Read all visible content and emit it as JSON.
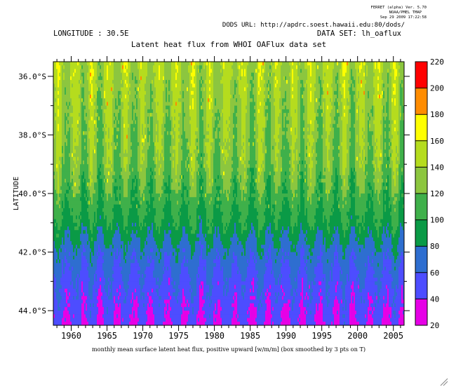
{
  "header": {
    "ferret_line1": "FERRET (alpha) Ver. 5.70",
    "ferret_line2": "NOAA/PMEL TMAP",
    "ferret_line3": "Sep 29 2009 17:22:58",
    "dods_url": "DODS URL: http://apdrc.soest.hawaii.edu:80/dods/",
    "longitude": "LONGITUDE : 30.5E",
    "dataset": "DATA SET: lh_oaflux"
  },
  "chart_data": {
    "type": "heatmap",
    "title": "Latent heat flux from WHOI OAFlux data set",
    "xlabel": "monthly mean surface latent heat flux, positive upward [w/m/m] (box smoothed by 3 pts on T)",
    "ylabel": "LATITUDE",
    "xlim": [
      1957.5,
      2006.5
    ],
    "ylim": [
      -44.5,
      -35.5
    ],
    "x_ticks": [
      1960,
      1965,
      1970,
      1975,
      1980,
      1985,
      1990,
      1995,
      2000,
      2005
    ],
    "x_tick_labels": [
      "1960",
      "1965",
      "1970",
      "1975",
      "1980",
      "1985",
      "1990",
      "1995",
      "2000",
      "2005"
    ],
    "y_ticks": [
      -36,
      -38,
      -40,
      -42,
      -44
    ],
    "y_tick_labels": [
      "36.0°S",
      "38.0°S",
      "40.0°S",
      "42.0°S",
      "44.0°S"
    ],
    "colorbar": {
      "levels": [
        20,
        40,
        60,
        80,
        100,
        120,
        140,
        160,
        180,
        200,
        220
      ],
      "level_labels": [
        "20",
        "40",
        "60",
        "80",
        "100",
        "120",
        "140",
        "160",
        "180",
        "200",
        "220"
      ],
      "colors": [
        "#e600e6",
        "#4d4dff",
        "#2e6ed0",
        "#0a9a46",
        "#3fb04a",
        "#8cc63f",
        "#b5dc1e",
        "#ffff00",
        "#ff8c00",
        "#ff0000",
        "#8c0000"
      ]
    },
    "profile": {
      "note_latitudes": [
        -35.5,
        -36,
        -37,
        -38,
        -39,
        -40,
        -41,
        -42,
        -43,
        -44,
        -44.5
      ],
      "typical_values": [
        145,
        140,
        135,
        130,
        125,
        110,
        95,
        70,
        55,
        45,
        40
      ]
    }
  }
}
